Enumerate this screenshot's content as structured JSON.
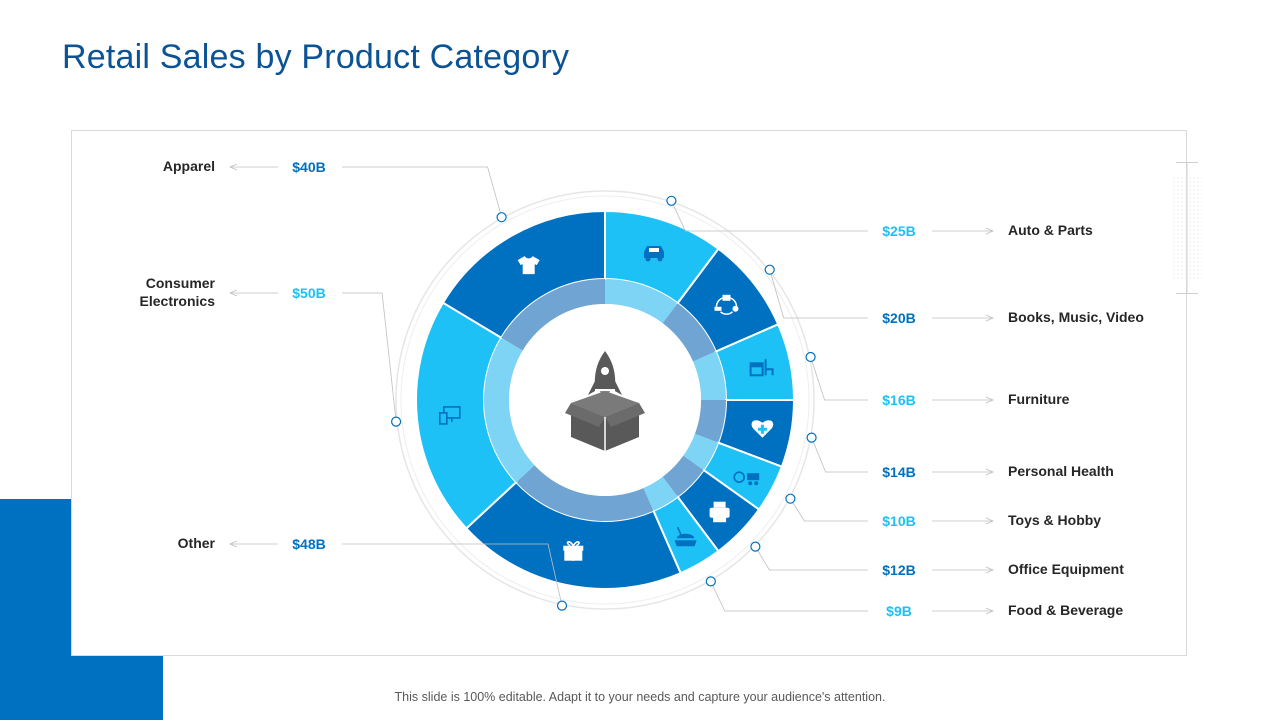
{
  "title": "Retail Sales by Product Category",
  "footer": "This slide is 100% editable. Adapt it to your needs and capture your audience's attention.",
  "colors": {
    "title": "#0B5394",
    "accent_block": "#0070C0",
    "dark_blue": "#0070C0",
    "light_blue": "#1DC1F6",
    "inner_dark": "#6FA4D3",
    "inner_light": "#7ED4F4",
    "center_icon": "#595959",
    "leader_line": "#BFBFBF",
    "label_text": "#262626"
  },
  "center_icon": "rocket-box-icon",
  "chart_data": {
    "type": "pie",
    "subtype": "donut",
    "unit": "$B",
    "legend": "none",
    "title": "",
    "categories": [
      "Auto & Parts",
      "Books, Music, Video",
      "Furniture",
      "Personal Health",
      "Toys & Hobby",
      "Office Equipment",
      "Food & Beverage",
      "Other",
      "Consumer Electronics",
      "Apparel"
    ],
    "values": [
      25,
      20,
      16,
      14,
      10,
      12,
      9,
      48,
      50,
      40
    ],
    "value_labels": [
      "$25B",
      "$20B",
      "$16B",
      "$14B",
      "$10B",
      "$12B",
      "$9B",
      "$48B",
      "$50B",
      "$40B"
    ],
    "slice_colors": [
      "#1DC1F6",
      "#0070C0",
      "#1DC1F6",
      "#0070C0",
      "#1DC1F6",
      "#0070C0",
      "#1DC1F6",
      "#0070C0",
      "#1DC1F6",
      "#0070C0"
    ],
    "value_label_colors": [
      "#1DC1F6",
      "#0070C0",
      "#1DC1F6",
      "#0070C0",
      "#1DC1F6",
      "#0070C0",
      "#1DC1F6",
      "#0070C0",
      "#1DC1F6",
      "#0070C0"
    ],
    "slice_icons": [
      "car-icon",
      "media-icon",
      "furniture-icon",
      "health-heart-icon",
      "toys-icon",
      "printer-icon",
      "food-icon",
      "gift-icon",
      "devices-icon",
      "tshirt-icon"
    ],
    "label_sides": [
      "right",
      "right",
      "right",
      "right",
      "right",
      "right",
      "right",
      "left",
      "left",
      "left"
    ]
  }
}
